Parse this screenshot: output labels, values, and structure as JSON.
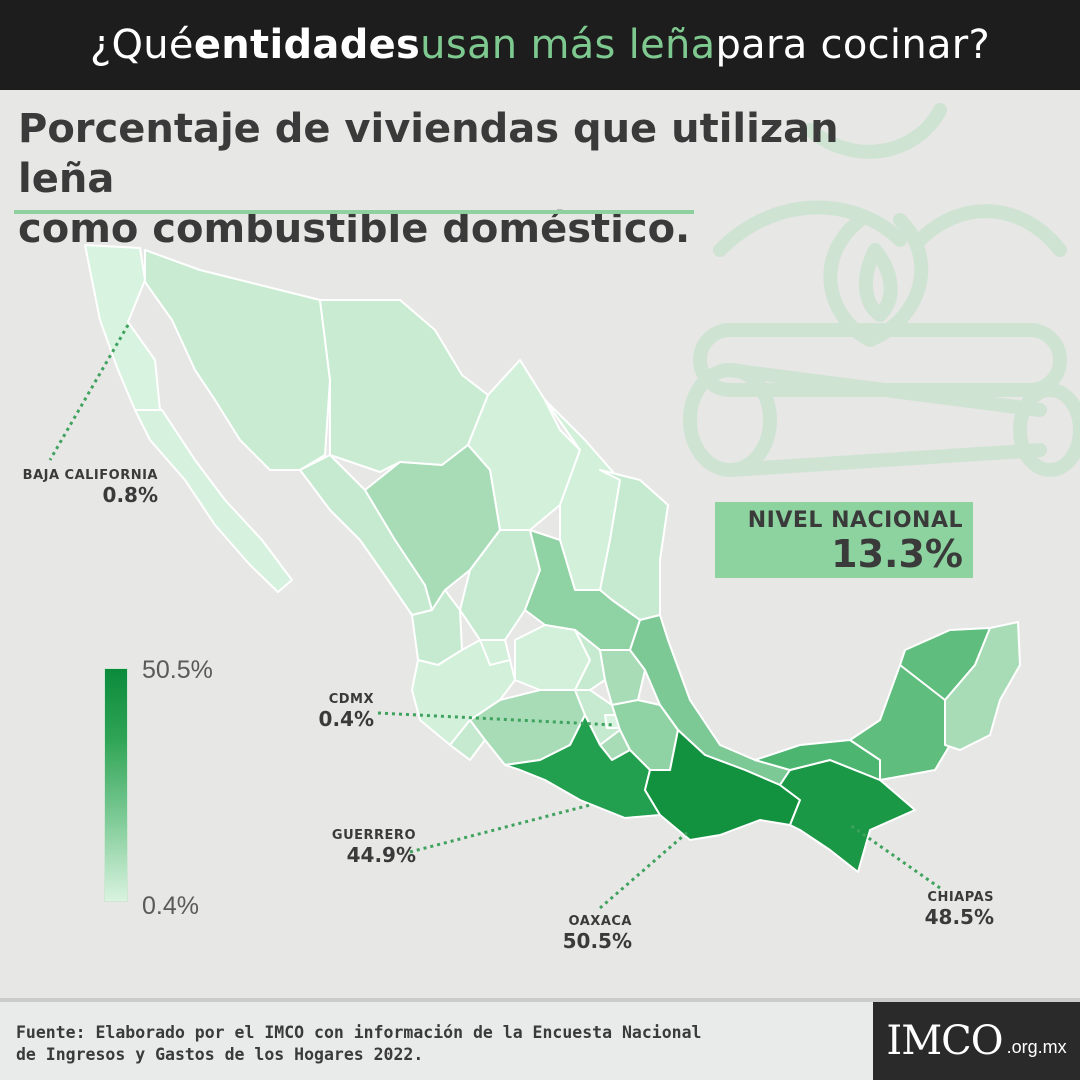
{
  "header": {
    "title_part1": "¿Qué ",
    "title_bold": "entidades",
    "title_space": " ",
    "title_green": "usan más leña",
    "title_part2": " para cocinar?"
  },
  "subtitle": {
    "line1": "Porcentaje de viviendas que utilizan leña",
    "line2": "como combustible doméstico."
  },
  "national": {
    "label": "NIVEL NACIONAL",
    "value": "13.3%"
  },
  "callouts": {
    "baja_california": {
      "name": "BAJA CALIFORNIA",
      "value": "0.8%"
    },
    "cdmx": {
      "name": "CDMX",
      "value": "0.4%"
    },
    "guerrero": {
      "name": "GUERRERO",
      "value": "44.9%"
    },
    "oaxaca": {
      "name": "OAXACA",
      "value": "50.5%"
    },
    "chiapas": {
      "name": "CHIAPAS",
      "value": "48.5%"
    }
  },
  "legend": {
    "max_label": "50.5%",
    "min_label": "0.4%",
    "color_max": "#0b8a3b",
    "color_min": "#d9f3e0"
  },
  "footer": {
    "source_line1": "Fuente: Elaborado por el IMCO con información de la Encuesta Nacional",
    "source_line2": "de Ingresos y Gastos de los Hogares 2022.",
    "logo": "IMCO",
    "logo_suffix": ".org.mx"
  },
  "colors": {
    "banner_bg": "#1d1d1d",
    "accent_green": "#7ec98f",
    "very_light": "#d6f2de",
    "light": "#c2e8cd",
    "mid_light": "#a8dcb8",
    "mid": "#8fd2a4",
    "mid_dark": "#5fbd7d",
    "dark": "#23a04f",
    "darkest": "#12913f"
  }
}
